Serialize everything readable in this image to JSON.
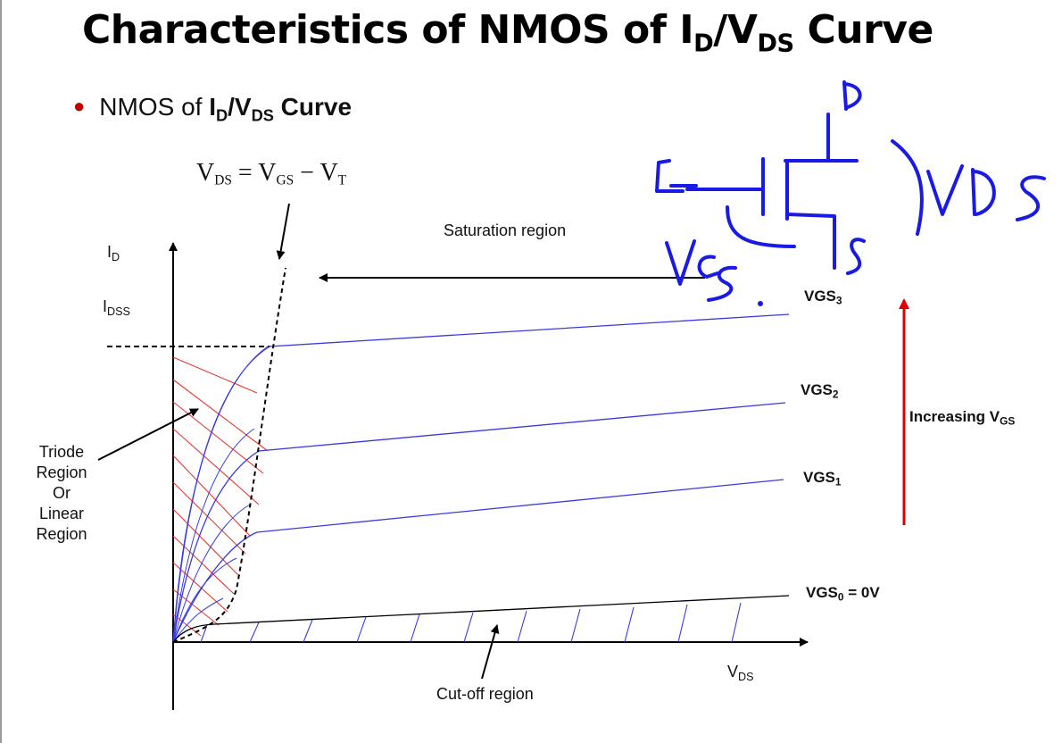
{
  "title": {
    "main": "Characteristics of NMOS of I",
    "sub1": "D",
    "mid": "/V",
    "sub2": "DS",
    "end": " Curve"
  },
  "bullet": {
    "text": "NMOS of ",
    "b1": "I",
    "s1": "D",
    "b2": "/V",
    "s2": "DS",
    "b3": " Curve"
  },
  "equation": {
    "v1": "V",
    "s1": "DS",
    "eq": " = ",
    "v2": "V",
    "s2": "GS",
    "minus": " − ",
    "v3": "V",
    "s3": "T"
  },
  "axes": {
    "y_main": "I",
    "y_sub": "D",
    "idss_main": "I",
    "idss_sub": "DSS",
    "x_main": "V",
    "x_sub": "DS"
  },
  "regions": {
    "saturation": "Saturation region",
    "triode": [
      "Triode",
      "Region",
      "Or",
      "Linear",
      "Region"
    ],
    "cutoff": "Cut-off region"
  },
  "curves": [
    {
      "main": "VGS",
      "sub": "3",
      "suffix": ""
    },
    {
      "main": "VGS",
      "sub": "2",
      "suffix": ""
    },
    {
      "main": "VGS",
      "sub": "1",
      "suffix": ""
    },
    {
      "main": "VGS",
      "sub": "0",
      "suffix": " = 0V"
    }
  ],
  "increasing": {
    "main": "Increasing V",
    "sub": "GS"
  },
  "colors": {
    "curve": "#3a3ae0",
    "hatch_red": "#e53935",
    "arrow_red": "#e00000",
    "ink_blue": "#1a1ae6"
  },
  "annotations": {
    "handwritten": [
      "D",
      "S",
      "VDS",
      "VGS"
    ],
    "icon": "nmos-transistor-symbol-sketch"
  }
}
